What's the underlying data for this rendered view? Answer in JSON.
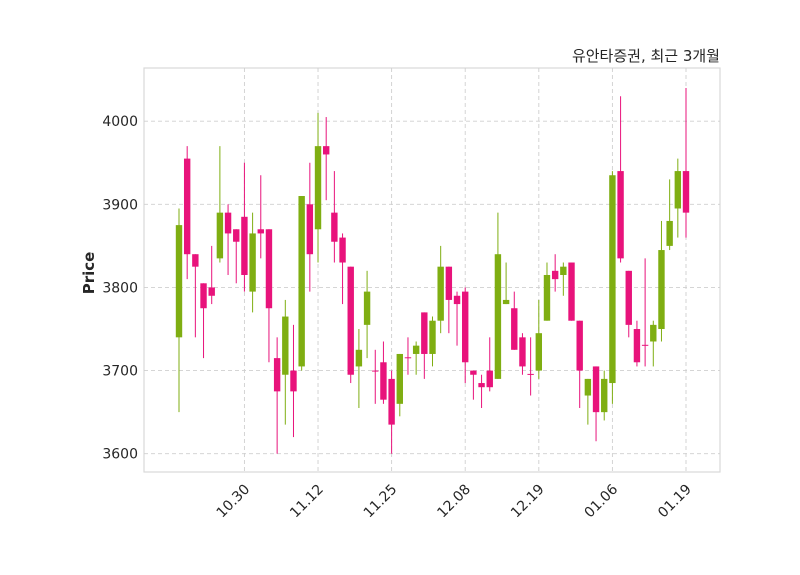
{
  "chart_data": {
    "type": "candlestick",
    "title": "유안타증권, 최근 3개월",
    "xlabel": "",
    "ylabel": "Price",
    "ylim": [
      3578,
      4064
    ],
    "yticks": [
      3600,
      3700,
      3800,
      3900,
      4000
    ],
    "grid": true,
    "xticks": [
      {
        "index": 8,
        "label": "10.30"
      },
      {
        "index": 17,
        "label": "11.12"
      },
      {
        "index": 26,
        "label": "11.25"
      },
      {
        "index": 35,
        "label": "12.08"
      },
      {
        "index": 44,
        "label": "12.19"
      },
      {
        "index": 53,
        "label": "01.06"
      },
      {
        "index": 62,
        "label": "01.19"
      }
    ],
    "colors": {
      "up": "#7fae12",
      "down": "#e8137b"
    },
    "ohlc": [
      [
        3740,
        3895,
        3650,
        3875
      ],
      [
        3955,
        3970,
        3810,
        3840
      ],
      [
        3840,
        3840,
        3740,
        3825
      ],
      [
        3805,
        3805,
        3715,
        3775
      ],
      [
        3800,
        3850,
        3780,
        3790
      ],
      [
        3835,
        3970,
        3830,
        3890
      ],
      [
        3890,
        3900,
        3815,
        3865
      ],
      [
        3870,
        3870,
        3805,
        3855
      ],
      [
        3885,
        3950,
        3795,
        3815
      ],
      [
        3795,
        3890,
        3770,
        3865
      ],
      [
        3870,
        3935,
        3835,
        3865
      ],
      [
        3870,
        3870,
        3710,
        3775
      ],
      [
        3715,
        3740,
        3600,
        3675
      ],
      [
        3695,
        3785,
        3635,
        3765
      ],
      [
        3700,
        3755,
        3620,
        3675
      ],
      [
        3705,
        3910,
        3700,
        3910
      ],
      [
        3900,
        3950,
        3795,
        3840
      ],
      [
        3870,
        4010,
        3830,
        3970
      ],
      [
        3970,
        4005,
        3905,
        3960
      ],
      [
        3890,
        3940,
        3830,
        3855
      ],
      [
        3860,
        3865,
        3780,
        3830
      ],
      [
        3825,
        3825,
        3685,
        3695
      ],
      [
        3705,
        3750,
        3655,
        3725
      ],
      [
        3755,
        3820,
        3715,
        3795
      ],
      [
        3700,
        3725,
        3660,
        3699
      ],
      [
        3710,
        3735,
        3660,
        3665
      ],
      [
        3690,
        3700,
        3600,
        3635
      ],
      [
        3660,
        3720,
        3645,
        3720
      ],
      [
        3716,
        3740,
        3695,
        3715
      ],
      [
        3720,
        3735,
        3695,
        3730
      ],
      [
        3770,
        3770,
        3690,
        3720
      ],
      [
        3720,
        3765,
        3705,
        3760
      ],
      [
        3760,
        3850,
        3745,
        3825
      ],
      [
        3825,
        3825,
        3745,
        3785
      ],
      [
        3790,
        3795,
        3730,
        3780
      ],
      [
        3795,
        3800,
        3685,
        3710
      ],
      [
        3700,
        3700,
        3665,
        3695
      ],
      [
        3685,
        3695,
        3655,
        3680
      ],
      [
        3700,
        3740,
        3675,
        3680
      ],
      [
        3690,
        3890,
        3690,
        3840
      ],
      [
        3780,
        3830,
        3780,
        3785
      ],
      [
        3775,
        3795,
        3725,
        3725
      ],
      [
        3740,
        3745,
        3695,
        3705
      ],
      [
        3696,
        3740,
        3670,
        3695
      ],
      [
        3700,
        3785,
        3690,
        3745
      ],
      [
        3760,
        3830,
        3760,
        3815
      ],
      [
        3820,
        3840,
        3795,
        3810
      ],
      [
        3815,
        3830,
        3790,
        3825
      ],
      [
        3830,
        3830,
        3760,
        3760
      ],
      [
        3760,
        3760,
        3655,
        3700
      ],
      [
        3670,
        3690,
        3635,
        3690
      ],
      [
        3705,
        3705,
        3615,
        3650
      ],
      [
        3650,
        3700,
        3640,
        3690
      ],
      [
        3685,
        3940,
        3660,
        3935
      ],
      [
        3940,
        4030,
        3830,
        3835
      ],
      [
        3820,
        3820,
        3740,
        3755
      ],
      [
        3750,
        3760,
        3705,
        3710
      ],
      [
        3731,
        3835,
        3705,
        3730
      ],
      [
        3735,
        3760,
        3705,
        3755
      ],
      [
        3750,
        3880,
        3735,
        3845
      ],
      [
        3850,
        3930,
        3845,
        3880
      ],
      [
        3895,
        3955,
        3860,
        3940
      ],
      [
        3940,
        4040,
        3860,
        3890
      ]
    ]
  }
}
